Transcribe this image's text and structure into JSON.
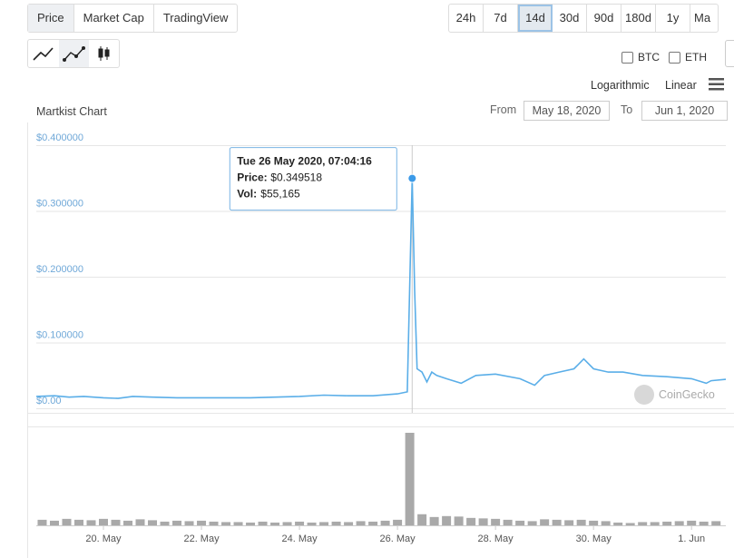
{
  "tabs": [
    "Price",
    "Market Cap",
    "TradingView"
  ],
  "ranges": [
    "24h",
    "7d",
    "14d",
    "30d",
    "90d",
    "180d",
    "1y",
    "Ma"
  ],
  "compare": [
    "BTC",
    "ETH"
  ],
  "scales": [
    "Logarithmic",
    "Linear"
  ],
  "from_label": "From",
  "from_date": "May 18, 2020",
  "to_label": "To",
  "to_date": "Jun 1, 2020",
  "watermark": "CoinGecko",
  "chart_data": {
    "type": "line",
    "title": "Martkist Chart",
    "color": "#5aaee8",
    "x": [
      18.63,
      19.0,
      19.3,
      19.6,
      20.0,
      20.3,
      20.6,
      21.0,
      21.5,
      22.0,
      22.5,
      23.0,
      23.5,
      24.0,
      24.5,
      25.0,
      25.5,
      26.0,
      26.2,
      26.3,
      26.35,
      26.4,
      26.5,
      26.6,
      26.7,
      26.8,
      27.0,
      27.3,
      27.6,
      28.0,
      28.5,
      28.8,
      29.0,
      29.3,
      29.6,
      29.8,
      30.0,
      30.3,
      30.6,
      31.0,
      31.5,
      32.0,
      32.3,
      32.4,
      32.7
    ],
    "values": [
      0.018,
      0.019,
      0.017,
      0.018,
      0.016,
      0.015,
      0.018,
      0.017,
      0.016,
      0.016,
      0.016,
      0.016,
      0.017,
      0.018,
      0.02,
      0.019,
      0.019,
      0.022,
      0.025,
      0.349518,
      0.18,
      0.06,
      0.055,
      0.04,
      0.055,
      0.05,
      0.045,
      0.038,
      0.05,
      0.052,
      0.045,
      0.035,
      0.05,
      0.055,
      0.06,
      0.075,
      0.06,
      0.055,
      0.055,
      0.05,
      0.048,
      0.045,
      0.038,
      0.042,
      0.044
    ],
    "xlim": [
      18.63,
      32.7
    ],
    "xticks": [
      {
        "value": 20,
        "label": "20. May"
      },
      {
        "value": 22,
        "label": "22. May"
      },
      {
        "value": 24,
        "label": "24. May"
      },
      {
        "value": 26,
        "label": "26. May"
      },
      {
        "value": 28,
        "label": "28. May"
      },
      {
        "value": 30,
        "label": "30. May"
      },
      {
        "value": 32,
        "label": "1. Jun"
      }
    ],
    "ylim": [
      0,
      0.4
    ],
    "yticks": [
      {
        "value": 0,
        "label": "$0.00"
      },
      {
        "value": 0.1,
        "label": "$0.100000"
      },
      {
        "value": 0.2,
        "label": "$0.200000"
      },
      {
        "value": 0.3,
        "label": "$0.300000"
      },
      {
        "value": 0.4,
        "label": "$0.400000"
      }
    ],
    "grid": true,
    "tooltip": {
      "x": 26.3,
      "y": 0.349518,
      "date": "Tue 26 May 2020, 07:04:16",
      "price_label": "Price:",
      "price": "$0.349518",
      "vol_label": "Vol:",
      "vol": "$55,165"
    },
    "volume": {
      "color": "#a9a9a9",
      "ylim": [
        0,
        100000
      ],
      "x": [
        18.75,
        19.0,
        19.25,
        19.5,
        19.75,
        20.0,
        20.25,
        20.5,
        20.75,
        21.0,
        21.25,
        21.5,
        21.75,
        22.0,
        22.25,
        22.5,
        22.75,
        23.0,
        23.25,
        23.5,
        23.75,
        24.0,
        24.25,
        24.5,
        24.75,
        25.0,
        25.25,
        25.5,
        25.75,
        26.0,
        26.25,
        26.5,
        26.75,
        27.0,
        27.25,
        27.5,
        27.75,
        28.0,
        28.25,
        28.5,
        28.75,
        29.0,
        29.25,
        29.5,
        29.75,
        30.0,
        30.25,
        30.5,
        30.75,
        31.0,
        31.25,
        31.5,
        31.75,
        32.0,
        32.25,
        32.5
      ],
      "values": [
        6000,
        5000,
        7000,
        6000,
        5500,
        7000,
        6000,
        5000,
        6500,
        5500,
        4000,
        5000,
        4500,
        5000,
        4000,
        3500,
        3500,
        3000,
        4000,
        3000,
        3500,
        4000,
        3000,
        3500,
        4000,
        3500,
        4500,
        4000,
        5000,
        6000,
        100000,
        12000,
        9000,
        10000,
        9500,
        8000,
        7500,
        7000,
        6000,
        5000,
        4500,
        6500,
        6000,
        5500,
        6000,
        5000,
        4500,
        3000,
        2500,
        3500,
        3500,
        4000,
        4500,
        5000,
        4000,
        4500
      ]
    }
  }
}
